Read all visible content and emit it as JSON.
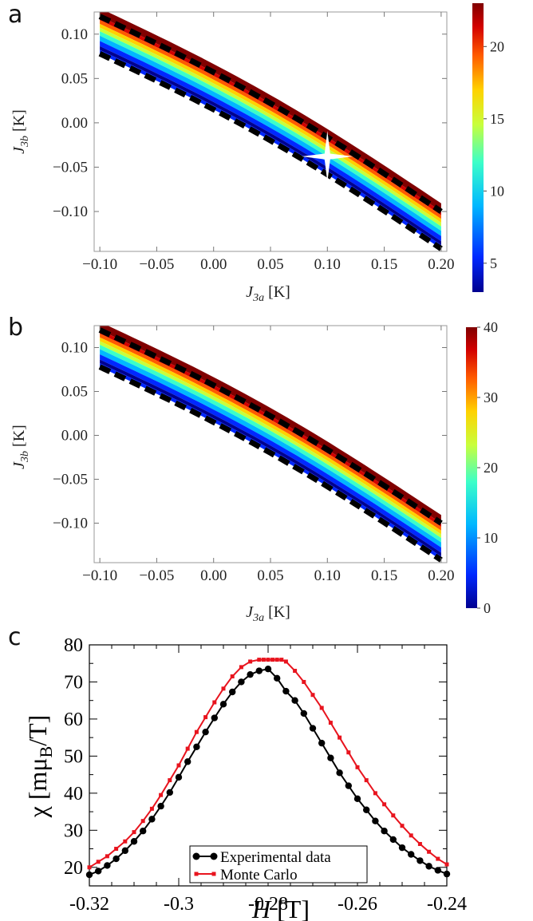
{
  "panels": {
    "a": {
      "letter": "a",
      "xlabel": {
        "sym": "J",
        "sub": "3a",
        "unit": " [K]"
      },
      "ylabel": {
        "sym": "J",
        "sub": "3b",
        "unit": " [K]"
      },
      "xticks": [
        "−0.10",
        "−0.05",
        "0.00",
        "0.05",
        "0.10",
        "0.15",
        "0.20"
      ],
      "yticks": [
        "0.10",
        "0.05",
        "0.00",
        "−0.05",
        "−0.10"
      ],
      "colorbar_ticks": [
        "20",
        "15",
        "10",
        "5"
      ]
    },
    "b": {
      "letter": "b",
      "xlabel": {
        "sym": "J",
        "sub": "3a",
        "unit": " [K]"
      },
      "ylabel": {
        "sym": "J",
        "sub": "3b",
        "unit": " [K]"
      },
      "xticks": [
        "−0.10",
        "−0.05",
        "0.00",
        "0.05",
        "0.10",
        "0.15",
        "0.20"
      ],
      "yticks": [
        "0.10",
        "0.05",
        "0.00",
        "−0.05",
        "−0.10"
      ],
      "colorbar_ticks": [
        "40",
        "30",
        "20",
        "10",
        "0"
      ]
    },
    "c": {
      "letter": "c",
      "xlabel": {
        "sym": "H",
        "unit": " [T]"
      },
      "ylabel": {
        "sym": "χ",
        "unit_pre": " [mμ",
        "sub": "B",
        "unit_post": "/T]"
      },
      "xticks": [
        "-0.32",
        "-0.3",
        "-0.28",
        "-0.26",
        "-0.24"
      ],
      "yticks": [
        "80",
        "70",
        "60",
        "50",
        "40",
        "30",
        "20"
      ],
      "legend": [
        "Experimental data",
        "Monte Carlo"
      ]
    }
  },
  "colors": {
    "experimental": "#000000",
    "monte_carlo": "#e8141e",
    "colormap": [
      "#00008f",
      "#0028ff",
      "#00b8ff",
      "#3cffc8",
      "#c8ff3c",
      "#ffd200",
      "#ff5a00",
      "#d20000",
      "#800000"
    ]
  },
  "chart_data": [
    {
      "panel": "a",
      "type": "heatmap",
      "xlabel": "J3a [K]",
      "ylabel": "J3b [K]",
      "xlim": [
        -0.105,
        0.205
      ],
      "ylim": [
        -0.145,
        0.125
      ],
      "colorbar_range": [
        3,
        23
      ],
      "boundary_upper": {
        "x": [
          -0.1,
          0.2
        ],
        "y": [
          0.12,
          -0.1
        ]
      },
      "boundary_lower": {
        "x": [
          -0.1,
          0.2
        ],
        "y": [
          0.078,
          -0.142
        ]
      },
      "best_fit_marker": {
        "x": 0.1,
        "y": -0.04,
        "shape": "star"
      }
    },
    {
      "panel": "b",
      "type": "heatmap",
      "xlabel": "J3a [K]",
      "ylabel": "J3b [K]",
      "xlim": [
        -0.105,
        0.205
      ],
      "ylim": [
        -0.145,
        0.125
      ],
      "colorbar_range": [
        0,
        40
      ],
      "boundary_upper": {
        "x": [
          -0.1,
          0.2
        ],
        "y": [
          0.12,
          -0.1
        ]
      },
      "boundary_lower": {
        "x": [
          -0.1,
          0.2
        ],
        "y": [
          0.078,
          -0.142
        ]
      }
    },
    {
      "panel": "c",
      "type": "line",
      "xlabel": "H [T]",
      "ylabel": "χ [mμB/T]",
      "xlim": [
        -0.32,
        -0.24
      ],
      "ylim": [
        15,
        80
      ],
      "legend_position": "bottom-right",
      "series": [
        {
          "name": "Experimental data",
          "marker": "circle",
          "x": [
            -0.32,
            -0.318,
            -0.316,
            -0.314,
            -0.312,
            -0.31,
            -0.308,
            -0.306,
            -0.304,
            -0.302,
            -0.3,
            -0.298,
            -0.296,
            -0.294,
            -0.292,
            -0.29,
            -0.288,
            -0.286,
            -0.284,
            -0.282,
            -0.28,
            -0.278,
            -0.276,
            -0.274,
            -0.272,
            -0.27,
            -0.268,
            -0.266,
            -0.264,
            -0.262,
            -0.26,
            -0.258,
            -0.256,
            -0.254,
            -0.252,
            -0.25,
            -0.248,
            -0.246,
            -0.244,
            -0.242,
            -0.24
          ],
          "y": [
            18.0,
            19.0,
            20.5,
            22.3,
            24.5,
            27.0,
            29.8,
            33.0,
            36.5,
            40.2,
            44.3,
            48.5,
            52.5,
            56.5,
            60.3,
            64.0,
            67.3,
            70.0,
            72.0,
            73.0,
            73.5,
            71.0,
            67.5,
            65.0,
            61.5,
            57.5,
            53.5,
            49.5,
            45.5,
            42.0,
            38.5,
            35.5,
            32.5,
            29.8,
            27.5,
            25.3,
            23.5,
            21.8,
            20.3,
            19.2,
            18.2
          ]
        },
        {
          "name": "Monte Carlo",
          "marker": "square",
          "x": [
            -0.32,
            -0.318,
            -0.316,
            -0.314,
            -0.312,
            -0.31,
            -0.308,
            -0.306,
            -0.304,
            -0.302,
            -0.3,
            -0.298,
            -0.296,
            -0.294,
            -0.292,
            -0.29,
            -0.288,
            -0.286,
            -0.284,
            -0.282,
            -0.281,
            -0.28,
            -0.279,
            -0.278,
            -0.277,
            -0.276,
            -0.274,
            -0.272,
            -0.27,
            -0.268,
            -0.266,
            -0.264,
            -0.262,
            -0.26,
            -0.258,
            -0.256,
            -0.254,
            -0.252,
            -0.25,
            -0.248,
            -0.246,
            -0.244,
            -0.242,
            -0.24
          ],
          "y": [
            20.0,
            21.5,
            23.0,
            25.0,
            27.0,
            29.5,
            32.5,
            35.8,
            39.5,
            43.5,
            47.5,
            52.0,
            56.5,
            60.5,
            64.5,
            68.2,
            71.5,
            74.0,
            75.5,
            76.0,
            76.0,
            76.0,
            76.0,
            76.0,
            76.0,
            75.5,
            73.0,
            70.0,
            66.5,
            63.0,
            59.0,
            55.0,
            51.0,
            47.0,
            43.5,
            40.0,
            37.0,
            34.0,
            31.2,
            28.6,
            26.3,
            24.2,
            22.3,
            20.8
          ]
        }
      ]
    }
  ]
}
